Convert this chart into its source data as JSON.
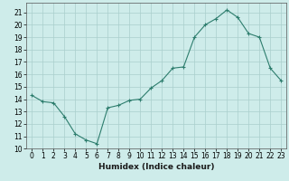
{
  "x": [
    0,
    1,
    2,
    3,
    4,
    5,
    6,
    7,
    8,
    9,
    10,
    11,
    12,
    13,
    14,
    15,
    16,
    17,
    18,
    19,
    20,
    21,
    22,
    23
  ],
  "y": [
    14.3,
    13.8,
    13.7,
    12.6,
    11.2,
    10.7,
    10.4,
    13.3,
    13.5,
    13.9,
    14.0,
    14.9,
    15.5,
    16.5,
    16.6,
    19.0,
    20.0,
    20.5,
    21.2,
    20.6,
    19.3,
    19.0,
    16.5,
    15.5
  ],
  "line_color": "#2d7d6d",
  "marker": "+",
  "markersize": 3,
  "linewidth": 0.8,
  "xlabel": "Humidex (Indice chaleur)",
  "xlim": [
    -0.5,
    23.5
  ],
  "ylim": [
    10,
    21.8
  ],
  "yticks": [
    10,
    11,
    12,
    13,
    14,
    15,
    16,
    17,
    18,
    19,
    20,
    21
  ],
  "xticks": [
    0,
    1,
    2,
    3,
    4,
    5,
    6,
    7,
    8,
    9,
    10,
    11,
    12,
    13,
    14,
    15,
    16,
    17,
    18,
    19,
    20,
    21,
    22,
    23
  ],
  "bg_color": "#ceecea",
  "grid_color": "#aacfcc",
  "grid_linewidth": 0.5,
  "tick_fontsize": 5.5,
  "xlabel_fontsize": 6.5
}
